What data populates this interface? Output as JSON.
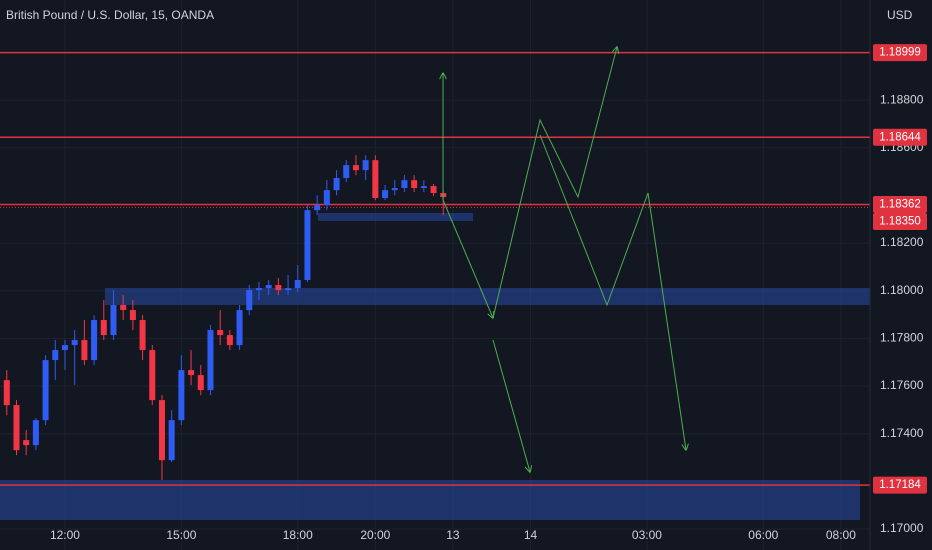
{
  "chart_data": {
    "type": "candlestick",
    "title": "British Pound / U.S. Dollar, 15, OANDA",
    "y_unit": "USD",
    "up_color": "#2f5cf2",
    "down_color": "#f23645",
    "level_color": "#e0323f",
    "grid": true,
    "x": [
      -6,
      -5,
      -4,
      -3,
      -2,
      -1,
      0,
      1,
      2,
      3,
      4,
      5,
      6,
      7,
      8,
      9,
      10,
      11,
      12,
      13,
      14,
      15,
      16,
      17,
      18,
      19,
      20,
      21,
      22,
      23,
      24,
      25,
      26,
      27,
      28,
      29,
      30,
      31,
      32,
      33,
      34,
      35,
      36,
      37,
      38,
      39
    ],
    "open": [
      1.17625,
      1.1752,
      1.17373,
      1.17352,
      1.17457,
      1.17709,
      1.17751,
      1.17772,
      1.17793,
      1.17709,
      1.17877,
      1.17814,
      1.1794,
      1.17919,
      1.17877,
      1.17751,
      1.17541,
      1.17289,
      1.17457,
      1.17667,
      1.17646,
      1.17583,
      1.17835,
      1.17814,
      1.17772,
      1.17919,
      1.18003,
      1.18011,
      1.18024,
      1.18003,
      1.18011,
      1.18045,
      1.18338,
      1.18359,
      1.18422,
      1.18473,
      1.18527,
      1.18506,
      1.18548,
      1.18389,
      1.18422,
      1.18431,
      1.18464,
      1.18431,
      1.18439,
      1.1841
    ],
    "high": [
      1.17667,
      1.17541,
      1.17415,
      1.17466,
      1.1773,
      1.17793,
      1.17793,
      1.17835,
      1.17877,
      1.17898,
      1.17961,
      1.18003,
      1.17982,
      1.17961,
      1.17898,
      1.17772,
      1.17562,
      1.17499,
      1.1773,
      1.17751,
      1.17688,
      1.17856,
      1.17919,
      1.17835,
      1.1794,
      1.18024,
      1.18036,
      1.18045,
      1.18053,
      1.18066,
      1.18108,
      1.18359,
      1.18401,
      1.18464,
      1.18506,
      1.18548,
      1.18569,
      1.18569,
      1.18569,
      1.18443,
      1.18464,
      1.18485,
      1.18485,
      1.18464,
      1.18448,
      1.18422
    ],
    "low": [
      1.17478,
      1.1731,
      1.1731,
      1.17331,
      1.17436,
      1.17625,
      1.17667,
      1.17604,
      1.17688,
      1.17688,
      1.17793,
      1.17793,
      1.17877,
      1.17835,
      1.17709,
      1.1752,
      1.17206,
      1.17281,
      1.17436,
      1.17604,
      1.17562,
      1.17562,
      1.17772,
      1.17751,
      1.17751,
      1.17898,
      1.17961,
      1.17982,
      1.17982,
      1.17982,
      1.17994,
      1.18036,
      1.18317,
      1.18338,
      1.18401,
      1.18456,
      1.18485,
      1.18464,
      1.1838,
      1.1838,
      1.18401,
      1.18414,
      1.18414,
      1.18414,
      1.18397,
      1.18317
    ],
    "close": [
      1.1752,
      1.17331,
      1.17352,
      1.17457,
      1.17709,
      1.17751,
      1.17772,
      1.17793,
      1.17709,
      1.17877,
      1.17814,
      1.1794,
      1.17919,
      1.17877,
      1.17751,
      1.17541,
      1.17289,
      1.17457,
      1.17667,
      1.17646,
      1.17583,
      1.17835,
      1.17814,
      1.17772,
      1.17919,
      1.18003,
      1.18011,
      1.18024,
      1.18003,
      1.18011,
      1.18045,
      1.18338,
      1.18359,
      1.18422,
      1.18473,
      1.18527,
      1.18506,
      1.18548,
      1.18389,
      1.18422,
      1.18431,
      1.18464,
      1.18431,
      1.18439,
      1.1841,
      1.18393
    ],
    "xlim": [
      -6.7,
      83
    ],
    "xticks": [
      {
        "value": 0,
        "label": "12:00"
      },
      {
        "value": 12,
        "label": "15:00"
      },
      {
        "value": 24,
        "label": "18:00"
      },
      {
        "value": 32,
        "label": "20:00"
      },
      {
        "value": 40,
        "label": "13"
      },
      {
        "value": 48,
        "label": "14"
      },
      {
        "value": 60,
        "label": "03:00"
      },
      {
        "value": 72,
        "label": "06:00"
      },
      {
        "value": 80,
        "label": "08:00"
      }
    ],
    "ylim": [
      1.16912,
      1.1922
    ],
    "yticks": [
      {
        "value": 1.188,
        "label": "1.18800"
      },
      {
        "value": 1.186,
        "label": "1.18600"
      },
      {
        "value": 1.182,
        "label": "1.18200"
      },
      {
        "value": 1.18,
        "label": "1.18000"
      },
      {
        "value": 1.178,
        "label": "1.17800"
      },
      {
        "value": 1.176,
        "label": "1.17600"
      },
      {
        "value": 1.174,
        "label": "1.17400"
      },
      {
        "value": 1.17,
        "label": "1.17000"
      }
    ],
    "levels": [
      {
        "value": 1.18999,
        "label": "1.18999"
      },
      {
        "value": 1.18644,
        "label": "1.18644"
      },
      {
        "value": 1.18362,
        "label": "1.18362"
      },
      {
        "value": 1.1835,
        "label": "1.18350",
        "line": "dotted"
      },
      {
        "value": 1.17184,
        "label": "1.17184"
      }
    ]
  }
}
